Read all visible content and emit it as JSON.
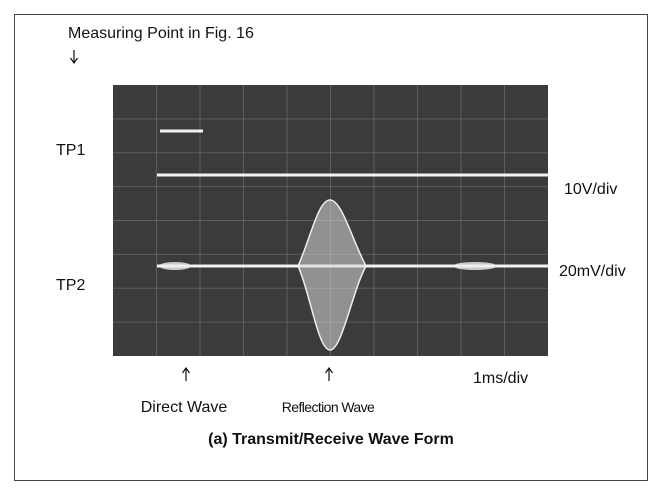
{
  "header": {
    "caption": "Measuring Point in Fig. 16"
  },
  "scope": {
    "channels": [
      {
        "label": "TP1",
        "scale": "10V/div"
      },
      {
        "label": "TP2",
        "scale": "20mV/div"
      }
    ],
    "time_scale": "1ms/div"
  },
  "annotations": [
    "Direct Wave",
    "Reflection Wave"
  ],
  "figure_caption": "(a) Transmit/Receive Wave Form"
}
